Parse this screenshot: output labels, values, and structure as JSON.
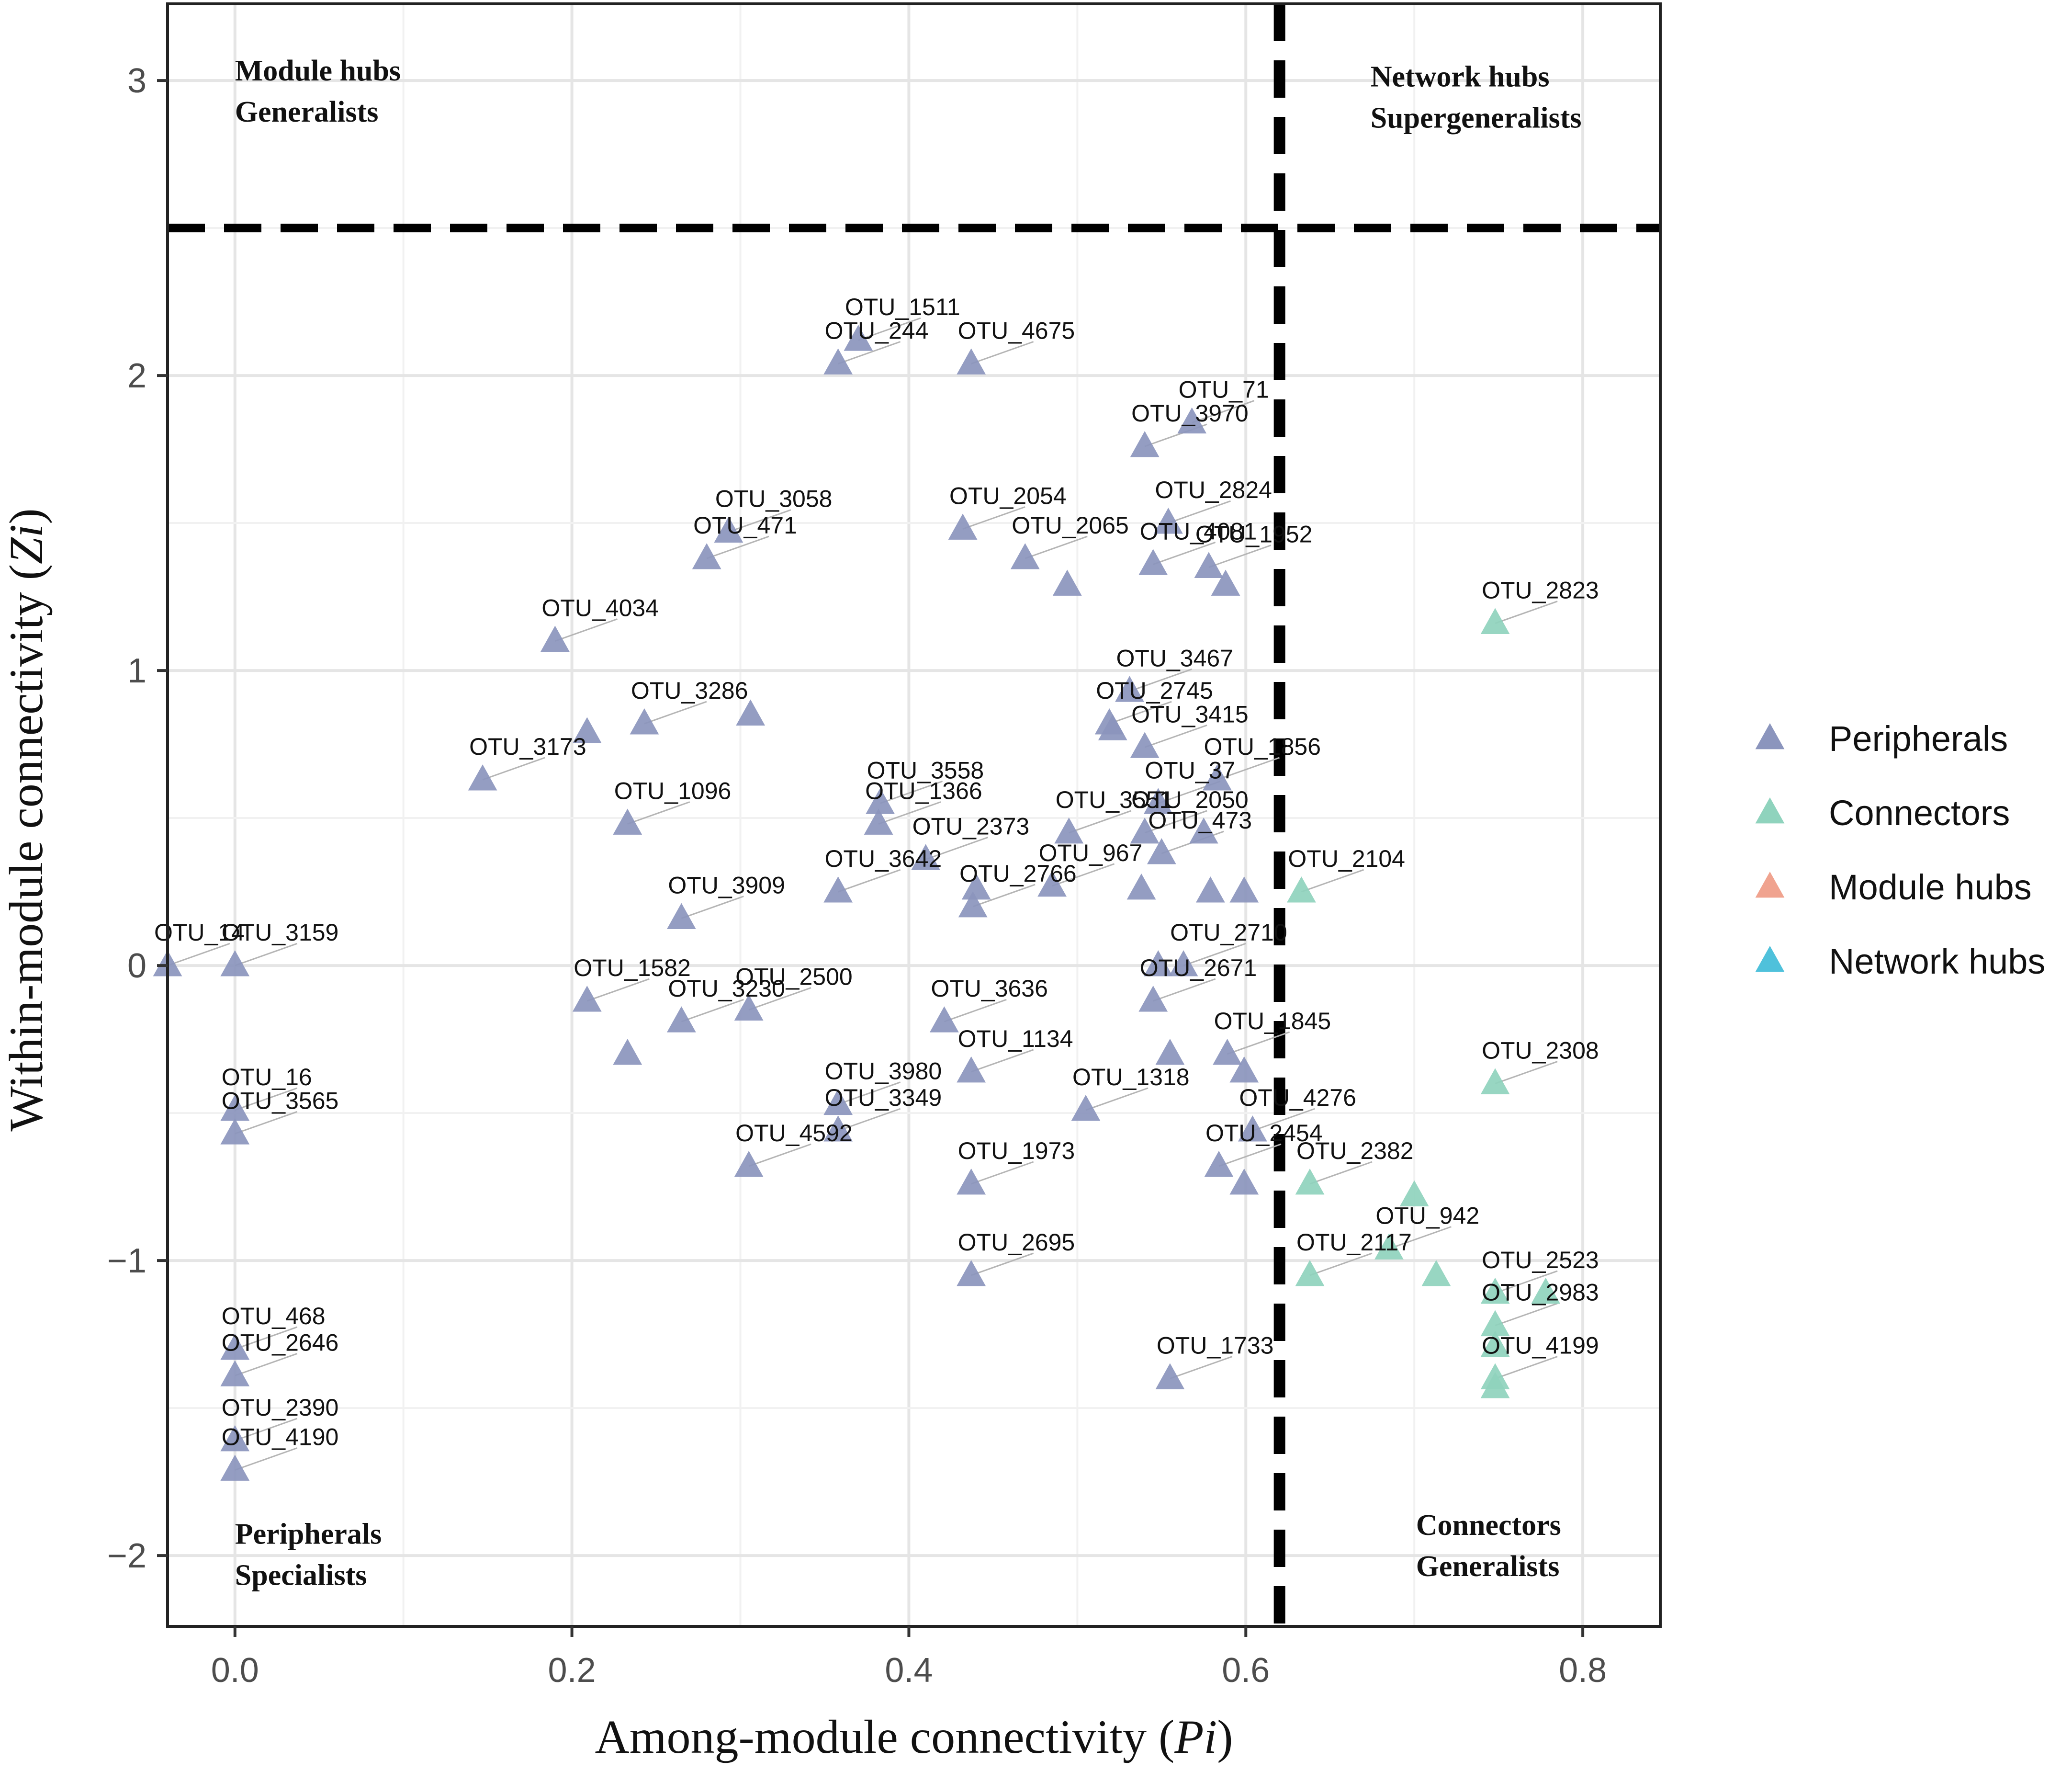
{
  "chart_data": {
    "type": "scatter",
    "title": "",
    "xlabel": {
      "prefix": "Among-module connectivity (",
      "italic": "Pi",
      "suffix": ")"
    },
    "ylabel": {
      "prefix": "Within-module connectivity (",
      "italic": "Zi",
      "suffix": ")"
    },
    "xlim": [
      -0.04,
      0.846
    ],
    "ylim": [
      -2.24,
      3.26
    ],
    "x_ticks": [
      0.0,
      0.2,
      0.4,
      0.6,
      0.8
    ],
    "x_tick_labels": [
      "0.0",
      "0.2",
      "0.4",
      "0.6",
      "0.8"
    ],
    "y_ticks": [
      -2,
      -1,
      0,
      1,
      2,
      3
    ],
    "y_tick_labels": [
      "−2",
      "−1",
      "0",
      "1",
      "2",
      "3"
    ],
    "thresholds": {
      "pi": 0.62,
      "zi": 2.5
    },
    "grid": true,
    "quadrant_labels": [
      {
        "name": "module-hubs",
        "line1": "Module hubs",
        "line2": "Generalists",
        "x": 0.0,
        "y": 3.0
      },
      {
        "name": "network-hubs",
        "line1": "Network hubs",
        "line2": "Supergeneralists",
        "x": 0.674,
        "y": 2.98
      },
      {
        "name": "peripherals",
        "line1": "Peripherals",
        "line2": "Specialists",
        "x": 0.0,
        "y": -1.96
      },
      {
        "name": "connectors",
        "line1": "Connectors",
        "line2": "Generalists",
        "x": 0.701,
        "y": -1.93
      }
    ],
    "legend": {
      "position": "right",
      "entries": [
        {
          "name": "Peripherals",
          "color": "#8b95bd"
        },
        {
          "name": "Connectors",
          "color": "#8fd3bd"
        },
        {
          "name": "Module hubs",
          "color": "#f0a38f"
        },
        {
          "name": "Network hubs",
          "color": "#4fc1db"
        }
      ]
    },
    "series": [
      {
        "name": "Peripherals",
        "color": "#8b95bd",
        "points": [
          {
            "label": "OTU_1511",
            "x": 0.37,
            "y": 2.12
          },
          {
            "label": "OTU_244",
            "x": 0.358,
            "y": 2.04
          },
          {
            "label": "OTU_4675",
            "x": 0.437,
            "y": 2.04
          },
          {
            "label": "OTU_71",
            "x": 0.568,
            "y": 1.84
          },
          {
            "label": "OTU_3970",
            "x": 0.54,
            "y": 1.76
          },
          {
            "label": "OTU_3058",
            "x": 0.293,
            "y": 1.47
          },
          {
            "label": "OTU_471",
            "x": 0.28,
            "y": 1.38
          },
          {
            "label": "OTU_2054",
            "x": 0.432,
            "y": 1.48
          },
          {
            "label": "OTU_2824",
            "x": 0.554,
            "y": 1.5
          },
          {
            "label": "OTU_2065",
            "x": 0.469,
            "y": 1.38
          },
          {
            "label": "OTU_4081",
            "x": 0.545,
            "y": 1.36
          },
          {
            "label": "OTU_1952",
            "x": 0.578,
            "y": 1.35
          },
          {
            "label": "",
            "x": 0.494,
            "y": 1.29
          },
          {
            "label": "",
            "x": 0.588,
            "y": 1.29
          },
          {
            "label": "OTU_4034",
            "x": 0.19,
            "y": 1.1
          },
          {
            "label": "OTU_3467",
            "x": 0.531,
            "y": 0.93
          },
          {
            "label": "OTU_2745",
            "x": 0.519,
            "y": 0.82
          },
          {
            "label": "",
            "x": 0.521,
            "y": 0.8
          },
          {
            "label": "OTU_3415",
            "x": 0.54,
            "y": 0.74
          },
          {
            "label": "OTU_1856",
            "x": 0.583,
            "y": 0.63
          },
          {
            "label": "OTU_37",
            "x": 0.548,
            "y": 0.55
          },
          {
            "label": "OTU_3286",
            "x": 0.243,
            "y": 0.82
          },
          {
            "label": "",
            "x": 0.306,
            "y": 0.85
          },
          {
            "label": "",
            "x": 0.209,
            "y": 0.79
          },
          {
            "label": "OTU_3173",
            "x": 0.147,
            "y": 0.63
          },
          {
            "label": "OTU_1096",
            "x": 0.233,
            "y": 0.48
          },
          {
            "label": "OTU_3558",
            "x": 0.383,
            "y": 0.55
          },
          {
            "label": "OTU_1366",
            "x": 0.382,
            "y": 0.48
          },
          {
            "label": "OTU_2373",
            "x": 0.41,
            "y": 0.36
          },
          {
            "label": "OTU_3551",
            "x": 0.495,
            "y": 0.45
          },
          {
            "label": "OTU_2050",
            "x": 0.54,
            "y": 0.45
          },
          {
            "label": "OTU_473",
            "x": 0.55,
            "y": 0.38
          },
          {
            "label": "",
            "x": 0.575,
            "y": 0.45
          },
          {
            "label": "OTU_3642",
            "x": 0.358,
            "y": 0.25
          },
          {
            "label": "OTU_2766",
            "x": 0.438,
            "y": 0.2
          },
          {
            "label": "",
            "x": 0.44,
            "y": 0.26
          },
          {
            "label": "OTU_967",
            "x": 0.485,
            "y": 0.27
          },
          {
            "label": "",
            "x": 0.538,
            "y": 0.26
          },
          {
            "label": "",
            "x": 0.579,
            "y": 0.25
          },
          {
            "label": "",
            "x": 0.599,
            "y": 0.25
          },
          {
            "label": "OTU_3909",
            "x": 0.265,
            "y": 0.16
          },
          {
            "label": "OTU_14",
            "x": -0.04,
            "y": 0.0
          },
          {
            "label": "OTU_3159",
            "x": 0.0,
            "y": 0.0
          },
          {
            "label": "OTU_2710",
            "x": 0.563,
            "y": 0.0
          },
          {
            "label": "",
            "x": 0.548,
            "y": 0.0
          },
          {
            "label": "OTU_2671",
            "x": 0.545,
            "y": -0.12
          },
          {
            "label": "OTU_1582",
            "x": 0.209,
            "y": -0.12
          },
          {
            "label": "OTU_2500",
            "x": 0.305,
            "y": -0.15
          },
          {
            "label": "OTU_3230",
            "x": 0.265,
            "y": -0.19
          },
          {
            "label": "OTU_3636",
            "x": 0.421,
            "y": -0.19
          },
          {
            "label": "OTU_1134",
            "x": 0.437,
            "y": -0.36
          },
          {
            "label": "OTU_1845",
            "x": 0.589,
            "y": -0.3
          },
          {
            "label": "",
            "x": 0.555,
            "y": -0.3
          },
          {
            "label": "",
            "x": 0.599,
            "y": -0.36
          },
          {
            "label": "",
            "x": 0.233,
            "y": -0.3
          },
          {
            "label": "OTU_3980",
            "x": 0.358,
            "y": -0.47
          },
          {
            "label": "OTU_3349",
            "x": 0.358,
            "y": -0.56
          },
          {
            "label": "OTU_1318",
            "x": 0.505,
            "y": -0.49
          },
          {
            "label": "OTU_4276",
            "x": 0.604,
            "y": -0.56
          },
          {
            "label": "OTU_16",
            "x": 0.0,
            "y": -0.49
          },
          {
            "label": "OTU_3565",
            "x": 0.0,
            "y": -0.57
          },
          {
            "label": "OTU_4592",
            "x": 0.305,
            "y": -0.68
          },
          {
            "label": "OTU_2454",
            "x": 0.584,
            "y": -0.68
          },
          {
            "label": "OTU_1973",
            "x": 0.437,
            "y": -0.74
          },
          {
            "label": "",
            "x": 0.599,
            "y": -0.74
          },
          {
            "label": "OTU_2695",
            "x": 0.437,
            "y": -1.05
          },
          {
            "label": "OTU_1733",
            "x": 0.555,
            "y": -1.4
          },
          {
            "label": "OTU_468",
            "x": 0.0,
            "y": -1.3
          },
          {
            "label": "OTU_2646",
            "x": 0.0,
            "y": -1.39
          },
          {
            "label": "OTU_2390",
            "x": 0.0,
            "y": -1.61
          },
          {
            "label": "OTU_4190",
            "x": 0.0,
            "y": -1.71
          }
        ]
      },
      {
        "name": "Connectors",
        "color": "#8fd3bd",
        "points": [
          {
            "label": "OTU_2823",
            "x": 0.748,
            "y": 1.16
          },
          {
            "label": "OTU_2104",
            "x": 0.633,
            "y": 0.25
          },
          {
            "label": "OTU_2308",
            "x": 0.748,
            "y": -0.4
          },
          {
            "label": "OTU_2382",
            "x": 0.638,
            "y": -0.74
          },
          {
            "label": "",
            "x": 0.7,
            "y": -0.78
          },
          {
            "label": "OTU_942",
            "x": 0.685,
            "y": -0.96
          },
          {
            "label": "OTU_2117",
            "x": 0.638,
            "y": -1.05
          },
          {
            "label": "",
            "x": 0.713,
            "y": -1.05
          },
          {
            "label": "OTU_2523",
            "x": 0.748,
            "y": -1.11
          },
          {
            "label": "",
            "x": 0.778,
            "y": -1.11
          },
          {
            "label": "OTU_2983",
            "x": 0.748,
            "y": -1.22
          },
          {
            "label": "",
            "x": 0.748,
            "y": -1.29
          },
          {
            "label": "OTU_4199",
            "x": 0.748,
            "y": -1.4
          },
          {
            "label": "",
            "x": 0.748,
            "y": -1.43
          }
        ]
      },
      {
        "name": "Module hubs",
        "color": "#f0a38f",
        "points": []
      },
      {
        "name": "Network hubs",
        "color": "#4fc1db",
        "points": []
      }
    ]
  }
}
